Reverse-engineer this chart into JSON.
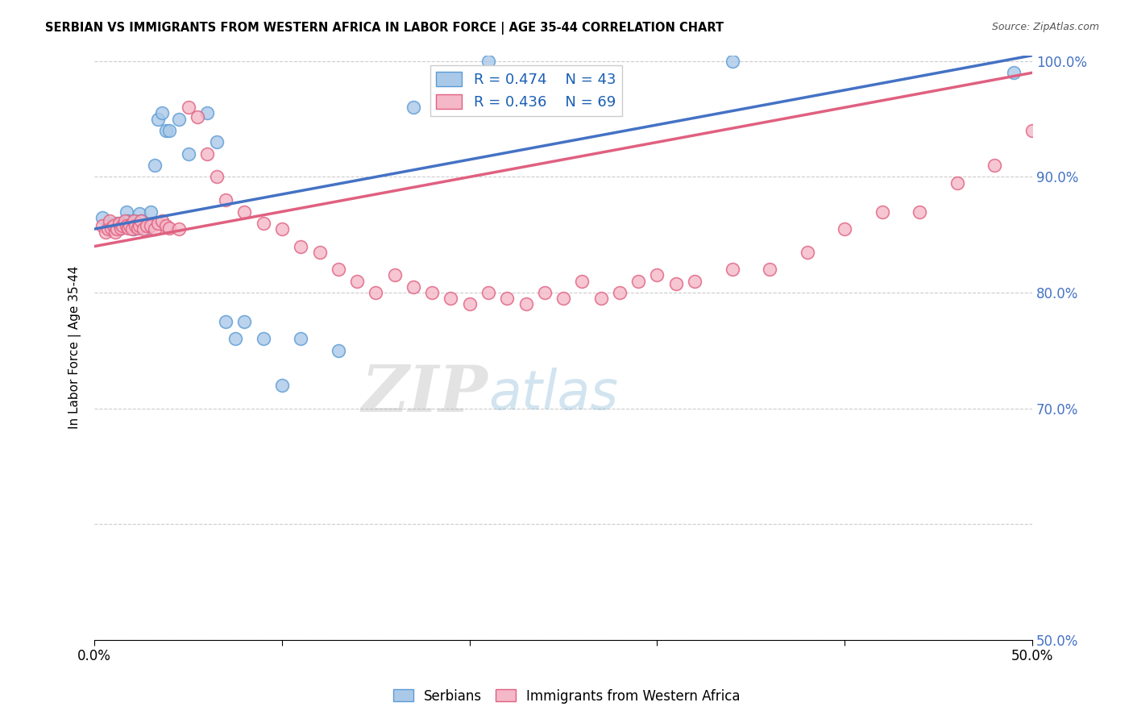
{
  "title": "SERBIAN VS IMMIGRANTS FROM WESTERN AFRICA IN LABOR FORCE | AGE 35-44 CORRELATION CHART",
  "source": "Source: ZipAtlas.com",
  "ylabel": "In Labor Force | Age 35-44",
  "xlim": [
    0.0,
    0.5
  ],
  "ylim": [
    0.5,
    1.005
  ],
  "xticks": [
    0.0,
    0.1,
    0.2,
    0.3,
    0.4,
    0.5
  ],
  "yticks": [
    0.5,
    0.6,
    0.7,
    0.8,
    0.9,
    1.0
  ],
  "serbian_R": 0.474,
  "serbian_N": 43,
  "western_africa_R": 0.436,
  "western_africa_N": 69,
  "serbian_color": "#aac9e8",
  "western_africa_color": "#f4b8c8",
  "serbian_edge_color": "#5b9bd5",
  "western_africa_edge_color": "#e06080",
  "serbian_line_color": "#4472c4",
  "western_africa_line_color": "#e06080",
  "legend_label_1": "Serbians",
  "legend_label_2": "Immigrants from Western Africa",
  "watermark_zip": "ZIP",
  "watermark_atlas": "atlas",
  "serbian_x": [
    0.004,
    0.007,
    0.008,
    0.009,
    0.01,
    0.011,
    0.012,
    0.013,
    0.014,
    0.015,
    0.016,
    0.017,
    0.018,
    0.019,
    0.02,
    0.021,
    0.022,
    0.023,
    0.024,
    0.025,
    0.026,
    0.028,
    0.03,
    0.032,
    0.034,
    0.036,
    0.038,
    0.04,
    0.045,
    0.05,
    0.06,
    0.065,
    0.07,
    0.075,
    0.08,
    0.09,
    0.1,
    0.11,
    0.13,
    0.17,
    0.21,
    0.34,
    0.49
  ],
  "serbian_y": [
    0.865,
    0.858,
    0.86,
    0.858,
    0.856,
    0.858,
    0.86,
    0.858,
    0.856,
    0.858,
    0.86,
    0.87,
    0.862,
    0.858,
    0.856,
    0.855,
    0.862,
    0.858,
    0.868,
    0.862,
    0.858,
    0.855,
    0.87,
    0.91,
    0.95,
    0.955,
    0.94,
    0.94,
    0.95,
    0.92,
    0.955,
    0.93,
    0.775,
    0.76,
    0.775,
    0.76,
    0.72,
    0.76,
    0.75,
    0.96,
    1.0,
    1.0,
    0.99
  ],
  "western_africa_x": [
    0.004,
    0.006,
    0.007,
    0.008,
    0.009,
    0.01,
    0.011,
    0.012,
    0.013,
    0.014,
    0.015,
    0.016,
    0.017,
    0.018,
    0.019,
    0.02,
    0.021,
    0.022,
    0.023,
    0.024,
    0.025,
    0.026,
    0.028,
    0.03,
    0.032,
    0.034,
    0.036,
    0.038,
    0.04,
    0.045,
    0.05,
    0.055,
    0.06,
    0.065,
    0.07,
    0.08,
    0.09,
    0.1,
    0.11,
    0.12,
    0.13,
    0.14,
    0.15,
    0.16,
    0.17,
    0.18,
    0.19,
    0.2,
    0.21,
    0.22,
    0.23,
    0.24,
    0.25,
    0.26,
    0.27,
    0.28,
    0.29,
    0.3,
    0.31,
    0.32,
    0.34,
    0.36,
    0.38,
    0.4,
    0.42,
    0.44,
    0.46,
    0.48,
    0.5
  ],
  "western_africa_y": [
    0.858,
    0.852,
    0.855,
    0.862,
    0.856,
    0.858,
    0.852,
    0.855,
    0.86,
    0.856,
    0.858,
    0.862,
    0.858,
    0.856,
    0.858,
    0.855,
    0.862,
    0.858,
    0.856,
    0.858,
    0.862,
    0.855,
    0.858,
    0.858,
    0.855,
    0.86,
    0.862,
    0.858,
    0.856,
    0.855,
    0.96,
    0.952,
    0.92,
    0.9,
    0.88,
    0.87,
    0.86,
    0.855,
    0.84,
    0.835,
    0.82,
    0.81,
    0.8,
    0.815,
    0.805,
    0.8,
    0.795,
    0.79,
    0.8,
    0.795,
    0.79,
    0.8,
    0.795,
    0.81,
    0.795,
    0.8,
    0.81,
    0.815,
    0.808,
    0.81,
    0.82,
    0.82,
    0.835,
    0.855,
    0.87,
    0.87,
    0.895,
    0.91,
    0.94
  ]
}
